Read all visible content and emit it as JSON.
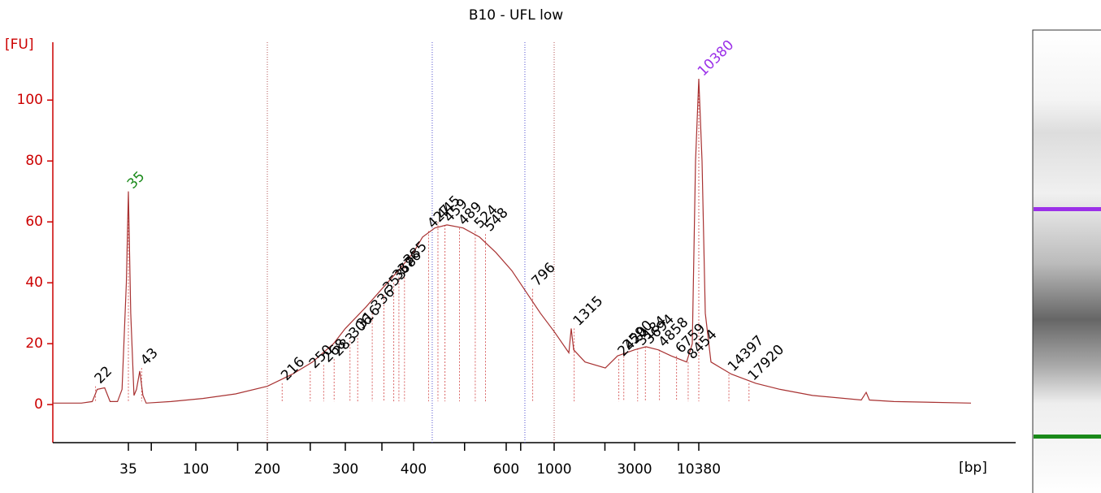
{
  "chart_data": {
    "type": "line",
    "title": "B10 - UFL low",
    "y_label": "[FU]",
    "x_label": "[bp]",
    "color": "#a83232",
    "axis_color": "#cc0000",
    "xscale": "sizing",
    "xlim": [
      12,
      200000
    ],
    "xticks": [
      35,
      100,
      200,
      300,
      400,
      600,
      1000,
      3000,
      10380
    ],
    "xminorticks": [
      50,
      150,
      250,
      350,
      500,
      700,
      2000,
      7000
    ],
    "ylim": [
      -12.5,
      119
    ],
    "yticks": [
      0,
      20,
      40,
      60,
      80,
      100
    ],
    "x": [
      12,
      18,
      21,
      22.5,
      25,
      27,
      30,
      32,
      34,
      35,
      36.3,
      38.2,
      39.7,
      41.8,
      43.9,
      46.2,
      68,
      107,
      147,
      200,
      228,
      253,
      282,
      300,
      327,
      350,
      375,
      400,
      416,
      439,
      463,
      497,
      534,
      573,
      637,
      758,
      864,
      1000,
      1222,
      1262,
      1305,
      1525,
      2012,
      2377,
      3000,
      3738,
      4731,
      6084,
      8201,
      9150,
      9750,
      10380,
      10750,
      11140,
      11850,
      14780,
      19270,
      25100,
      35720,
      60700,
      64000,
      66300,
      86400,
      200000
    ],
    "values": [
      0.5,
      0.5,
      1,
      5,
      5.5,
      1,
      1,
      5,
      40,
      70,
      30,
      3,
      5,
      11,
      3,
      0.5,
      1,
      2,
      3.5,
      6,
      10,
      14,
      20,
      25,
      32,
      38,
      44,
      50,
      55,
      58,
      59,
      58,
      55,
      50,
      44,
      36,
      30,
      24,
      17,
      25,
      18,
      14,
      12,
      16,
      18,
      19,
      18,
      16,
      14,
      20,
      80,
      107,
      80,
      30,
      14,
      10,
      7,
      5,
      3,
      1.5,
      4,
      1.5,
      1,
      0.5
    ],
    "peaks": [
      22,
      35,
      43,
      216,
      250,
      268,
      283,
      306,
      316,
      336,
      353,
      368,
      376,
      385,
      427,
      445,
      459,
      489,
      524,
      548,
      796,
      1315,
      2420,
      2590,
      3184,
      3694,
      4858,
      6759,
      8454,
      10380,
      14397,
      17920
    ],
    "peak_heights": [
      6,
      70,
      12,
      7,
      11,
      13,
      15,
      21,
      24,
      30,
      36,
      40,
      42,
      45,
      57,
      60,
      59,
      58,
      57,
      56,
      38,
      25,
      15,
      17,
      18.5,
      19,
      18,
      16,
      14,
      107,
      10,
      7
    ],
    "peak_colors": [
      "#000000",
      "#1a8a1a",
      "#000000",
      "#000000",
      "#000000",
      "#000000",
      "#000000",
      "#000000",
      "#000000",
      "#000000",
      "#000000",
      "#000000",
      "#000000",
      "#000000",
      "#000000",
      "#000000",
      "#000000",
      "#000000",
      "#000000",
      "#000000",
      "#000000",
      "#000000",
      "#000000",
      "#000000",
      "#000000",
      "#000000",
      "#000000",
      "#000000",
      "#000000",
      "#9b30e8",
      "#000000",
      "#000000"
    ],
    "region_lines": [
      200,
      434,
      732,
      1000
    ],
    "region_colors": [
      "#b05050",
      "#5050d0",
      "#5050d0",
      "#b05050"
    ]
  }
}
